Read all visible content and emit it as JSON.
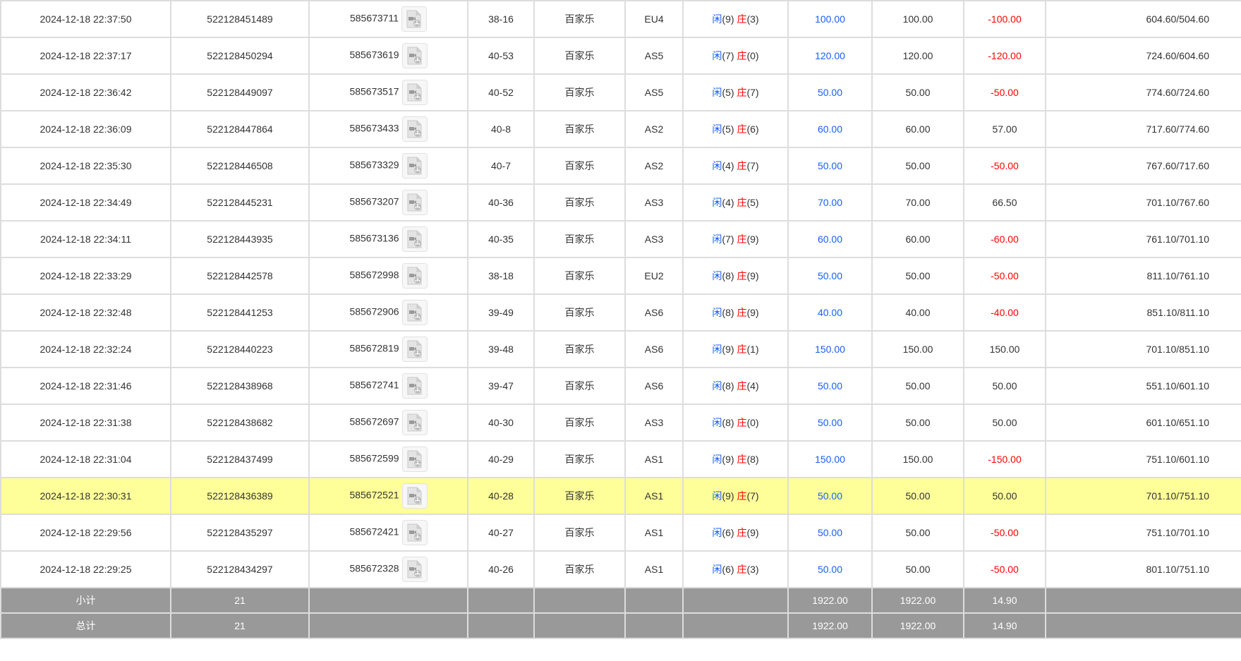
{
  "colors": {
    "blue": "#1a5cff",
    "red": "#ff0000",
    "highlight": "#ffff99",
    "summary_bg": "#999999"
  },
  "player_label": "闲",
  "banker_label": "庄",
  "rows": [
    {
      "time": "2024-12-18 22:37:50",
      "bet_id": "522128451489",
      "round_id": "585673711",
      "shoe": "38-16",
      "game": "百家乐",
      "table": "EU4",
      "player": "(9)",
      "banker": "(3)",
      "bet": "100.00",
      "valid": "100.00",
      "win": "-100.00",
      "neg": true,
      "balance": "604.60/504.60"
    },
    {
      "time": "2024-12-18 22:37:17",
      "bet_id": "522128450294",
      "round_id": "585673619",
      "shoe": "40-53",
      "game": "百家乐",
      "table": "AS5",
      "player": "(7)",
      "banker": "(0)",
      "bet": "120.00",
      "valid": "120.00",
      "win": "-120.00",
      "neg": true,
      "balance": "724.60/604.60"
    },
    {
      "time": "2024-12-18 22:36:42",
      "bet_id": "522128449097",
      "round_id": "585673517",
      "shoe": "40-52",
      "game": "百家乐",
      "table": "AS5",
      "player": "(5)",
      "banker": "(7)",
      "bet": "50.00",
      "valid": "50.00",
      "win": "-50.00",
      "neg": true,
      "balance": "774.60/724.60"
    },
    {
      "time": "2024-12-18 22:36:09",
      "bet_id": "522128447864",
      "round_id": "585673433",
      "shoe": "40-8",
      "game": "百家乐",
      "table": "AS2",
      "player": "(5)",
      "banker": "(6)",
      "bet": "60.00",
      "valid": "60.00",
      "win": "57.00",
      "neg": false,
      "balance": "717.60/774.60"
    },
    {
      "time": "2024-12-18 22:35:30",
      "bet_id": "522128446508",
      "round_id": "585673329",
      "shoe": "40-7",
      "game": "百家乐",
      "table": "AS2",
      "player": "(4)",
      "banker": "(7)",
      "bet": "50.00",
      "valid": "50.00",
      "win": "-50.00",
      "neg": true,
      "balance": "767.60/717.60"
    },
    {
      "time": "2024-12-18 22:34:49",
      "bet_id": "522128445231",
      "round_id": "585673207",
      "shoe": "40-36",
      "game": "百家乐",
      "table": "AS3",
      "player": "(4)",
      "banker": "(5)",
      "bet": "70.00",
      "valid": "70.00",
      "win": "66.50",
      "neg": false,
      "balance": "701.10/767.60"
    },
    {
      "time": "2024-12-18 22:34:11",
      "bet_id": "522128443935",
      "round_id": "585673136",
      "shoe": "40-35",
      "game": "百家乐",
      "table": "AS3",
      "player": "(7)",
      "banker": "(9)",
      "bet": "60.00",
      "valid": "60.00",
      "win": "-60.00",
      "neg": true,
      "balance": "761.10/701.10"
    },
    {
      "time": "2024-12-18 22:33:29",
      "bet_id": "522128442578",
      "round_id": "585672998",
      "shoe": "38-18",
      "game": "百家乐",
      "table": "EU2",
      "player": "(8)",
      "banker": "(9)",
      "bet": "50.00",
      "valid": "50.00",
      "win": "-50.00",
      "neg": true,
      "balance": "811.10/761.10"
    },
    {
      "time": "2024-12-18 22:32:48",
      "bet_id": "522128441253",
      "round_id": "585672906",
      "shoe": "39-49",
      "game": "百家乐",
      "table": "AS6",
      "player": "(8)",
      "banker": "(9)",
      "bet": "40.00",
      "valid": "40.00",
      "win": "-40.00",
      "neg": true,
      "balance": "851.10/811.10"
    },
    {
      "time": "2024-12-18 22:32:24",
      "bet_id": "522128440223",
      "round_id": "585672819",
      "shoe": "39-48",
      "game": "百家乐",
      "table": "AS6",
      "player": "(9)",
      "banker": "(1)",
      "bet": "150.00",
      "valid": "150.00",
      "win": "150.00",
      "neg": false,
      "balance": "701.10/851.10"
    },
    {
      "time": "2024-12-18 22:31:46",
      "bet_id": "522128438968",
      "round_id": "585672741",
      "shoe": "39-47",
      "game": "百家乐",
      "table": "AS6",
      "player": "(8)",
      "banker": "(4)",
      "bet": "50.00",
      "valid": "50.00",
      "win": "50.00",
      "neg": false,
      "balance": "551.10/601.10"
    },
    {
      "time": "2024-12-18 22:31:38",
      "bet_id": "522128438682",
      "round_id": "585672697",
      "shoe": "40-30",
      "game": "百家乐",
      "table": "AS3",
      "player": "(8)",
      "banker": "(0)",
      "bet": "50.00",
      "valid": "50.00",
      "win": "50.00",
      "neg": false,
      "balance": "601.10/651.10"
    },
    {
      "time": "2024-12-18 22:31:04",
      "bet_id": "522128437499",
      "round_id": "585672599",
      "shoe": "40-29",
      "game": "百家乐",
      "table": "AS1",
      "player": "(9)",
      "banker": "(8)",
      "bet": "150.00",
      "valid": "150.00",
      "win": "-150.00",
      "neg": true,
      "balance": "751.10/601.10"
    },
    {
      "time": "2024-12-18 22:30:31",
      "bet_id": "522128436389",
      "round_id": "585672521",
      "shoe": "40-28",
      "game": "百家乐",
      "table": "AS1",
      "player": "(9)",
      "banker": "(7)",
      "bet": "50.00",
      "valid": "50.00",
      "win": "50.00",
      "neg": false,
      "balance": "701.10/751.10",
      "highlight": true
    },
    {
      "time": "2024-12-18 22:29:56",
      "bet_id": "522128435297",
      "round_id": "585672421",
      "shoe": "40-27",
      "game": "百家乐",
      "table": "AS1",
      "player": "(6)",
      "banker": "(9)",
      "bet": "50.00",
      "valid": "50.00",
      "win": "-50.00",
      "neg": true,
      "balance": "751.10/701.10"
    },
    {
      "time": "2024-12-18 22:29:25",
      "bet_id": "522128434297",
      "round_id": "585672328",
      "shoe": "40-26",
      "game": "百家乐",
      "table": "AS1",
      "player": "(6)",
      "banker": "(3)",
      "bet": "50.00",
      "valid": "50.00",
      "win": "-50.00",
      "neg": true,
      "balance": "801.10/751.10"
    }
  ],
  "subtotal": {
    "label": "小计",
    "count": "21",
    "bet": "1922.00",
    "valid": "1922.00",
    "win": "14.90"
  },
  "total": {
    "label": "总计",
    "count": "21",
    "bet": "1922.00",
    "valid": "1922.00",
    "win": "14.90"
  }
}
